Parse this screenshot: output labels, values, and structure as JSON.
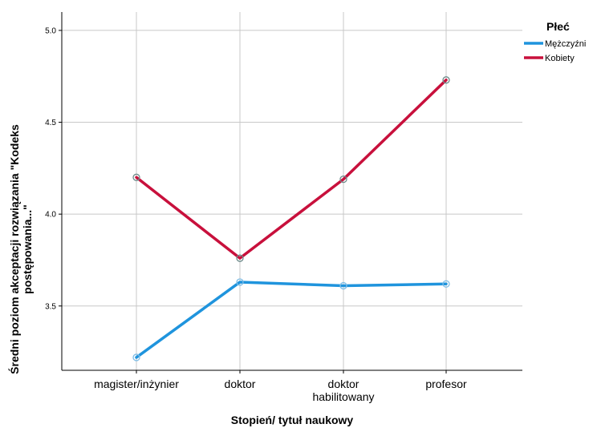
{
  "chart_data": {
    "type": "line",
    "categories": [
      "magister/inżynier",
      "doktor",
      "doktor|habilitowany",
      "profesor"
    ],
    "series": [
      {
        "name": "Mężczyźni",
        "color": "#1f94dd",
        "marker_color": "#7fbde6",
        "values": [
          3.22,
          3.63,
          3.61,
          3.62
        ]
      },
      {
        "name": "Kobiety",
        "color": "#c8103c",
        "marker_color": "#6e8b8b",
        "values": [
          4.2,
          3.76,
          4.19,
          4.73
        ]
      }
    ],
    "xlabel": "Stopień/ tytuł naukowy",
    "ylabel_lines": [
      "Średni poziom akceptacji rozwiązania \"Kodeks",
      "postępowania...\""
    ],
    "ylim": [
      3.15,
      5.1
    ],
    "yticks": [
      3.5,
      4.0,
      4.5,
      5.0
    ],
    "ytick_labels": [
      "3.5",
      "4.0",
      "4.5",
      "5.0"
    ],
    "grid": true,
    "legend": {
      "title": "Płeć",
      "position": "top-right"
    }
  }
}
